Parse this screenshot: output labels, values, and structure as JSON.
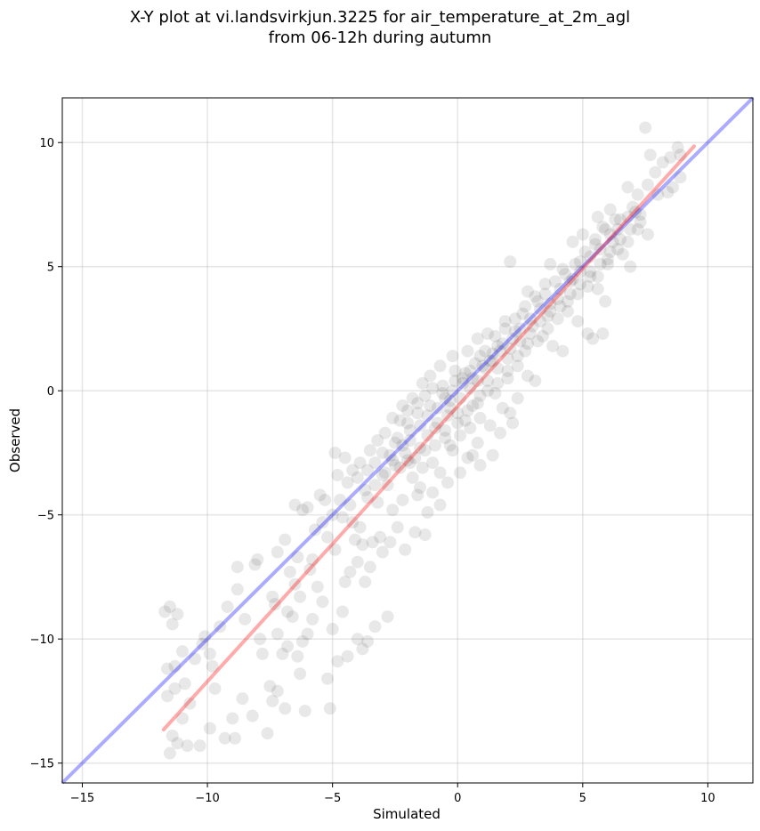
{
  "chart_data": {
    "type": "scatter",
    "title_line1": "X-Y plot at vi.landsvirkjun.3225 for air_temperature_at_2m_agl",
    "title_line2": "from 06-12h during autumn",
    "xlabel": "Simulated",
    "ylabel": "Observed",
    "xlim": [
      -15.8,
      11.8
    ],
    "ylim": [
      -15.8,
      11.8
    ],
    "xticks": [
      -15,
      -10,
      -5,
      0,
      5,
      10
    ],
    "yticks": [
      -15,
      -10,
      -5,
      0,
      5,
      10
    ],
    "xtick_labels": [
      "−15",
      "−10",
      "−5",
      "0",
      "5",
      "10"
    ],
    "ytick_labels": [
      "−15",
      "−10",
      "−5",
      "0",
      "5",
      "10"
    ],
    "grid": true,
    "point_color": "#000000",
    "point_opacity": 0.09,
    "reference_line": {
      "x": [
        -15.8,
        11.8
      ],
      "y": [
        -15.8,
        11.8
      ],
      "color": "#0000ff",
      "opacity": 0.33
    },
    "regression_line": {
      "x": [
        -11.75,
        9.45
      ],
      "y": [
        -13.65,
        9.85
      ],
      "color": "#ff0000",
      "opacity": 0.33
    },
    "points": [
      [
        -11.7,
        -8.9
      ],
      [
        -11.5,
        -8.7
      ],
      [
        -11.2,
        -9.0
      ],
      [
        -11.4,
        -9.4
      ],
      [
        -11.0,
        -10.5
      ],
      [
        -11.3,
        -11.1
      ],
      [
        -11.6,
        -11.2
      ],
      [
        -10.9,
        -11.8
      ],
      [
        -11.3,
        -12.0
      ],
      [
        -11.6,
        -12.3
      ],
      [
        -11.0,
        -13.2
      ],
      [
        -11.4,
        -13.9
      ],
      [
        -11.2,
        -14.2
      ],
      [
        -10.8,
        -14.3
      ],
      [
        -11.5,
        -14.6
      ],
      [
        -10.3,
        -14.3
      ],
      [
        -10.5,
        -10.8
      ],
      [
        -9.9,
        -10.6
      ],
      [
        -10.1,
        -9.9
      ],
      [
        -9.8,
        -11.1
      ],
      [
        -9.9,
        -13.6
      ],
      [
        -9.3,
        -14.0
      ],
      [
        -9.0,
        -13.2
      ],
      [
        -8.9,
        -14.0
      ],
      [
        -8.8,
        -8.0
      ],
      [
        -8.8,
        -7.1
      ],
      [
        -9.2,
        -8.7
      ],
      [
        -8.0,
        -6.8
      ],
      [
        -7.8,
        -10.6
      ],
      [
        -7.6,
        -13.8
      ],
      [
        -7.5,
        -11.9
      ],
      [
        -7.2,
        -12.1
      ],
      [
        -7.4,
        -12.5
      ],
      [
        -6.9,
        -12.8
      ],
      [
        -7.0,
        -10.6
      ],
      [
        -7.2,
        -9.8
      ],
      [
        -7.4,
        -8.3
      ],
      [
        -6.8,
        -8.9
      ],
      [
        -6.6,
        -9.1
      ],
      [
        -6.4,
        -10.7
      ],
      [
        -6.2,
        -10.1
      ],
      [
        -6.1,
        -12.9
      ],
      [
        -6.0,
        -9.8
      ],
      [
        -5.8,
        -9.2
      ],
      [
        -6.5,
        -7.8
      ],
      [
        -6.3,
        -8.3
      ],
      [
        -5.9,
        -7.2
      ],
      [
        -6.2,
        -4.8
      ],
      [
        -6.0,
        -4.7
      ],
      [
        -6.9,
        -6.0
      ],
      [
        -7.2,
        -6.5
      ],
      [
        -6.4,
        -6.7
      ],
      [
        -5.8,
        -6.8
      ],
      [
        -5.6,
        -7.9
      ],
      [
        -5.4,
        -8.5
      ],
      [
        -5.2,
        -11.6
      ],
      [
        -5.1,
        -12.8
      ],
      [
        -5.0,
        -9.6
      ],
      [
        -4.8,
        -10.9
      ],
      [
        -4.6,
        -8.9
      ],
      [
        -4.4,
        -10.7
      ],
      [
        -4.0,
        -10.0
      ],
      [
        -3.8,
        -10.4
      ],
      [
        -3.6,
        -10.1
      ],
      [
        -3.3,
        -9.5
      ],
      [
        -2.8,
        -9.1
      ],
      [
        -4.5,
        -7.7
      ],
      [
        -4.3,
        -7.3
      ],
      [
        -4.0,
        -6.9
      ],
      [
        -3.7,
        -7.7
      ],
      [
        -3.5,
        -7.1
      ],
      [
        -4.9,
        -6.4
      ],
      [
        -5.2,
        -5.9
      ],
      [
        -5.5,
        -4.2
      ],
      [
        -5.3,
        -4.4
      ],
      [
        -4.9,
        -2.5
      ],
      [
        -4.5,
        -2.7
      ],
      [
        -4.8,
        -3.4
      ],
      [
        -3.6,
        -4.3
      ],
      [
        -3.2,
        -4.5
      ],
      [
        -3.4,
        -6.1
      ],
      [
        -3.0,
        -6.5
      ],
      [
        -2.7,
        -6.1
      ],
      [
        -2.4,
        -5.5
      ],
      [
        -2.1,
        -6.4
      ],
      [
        -1.7,
        -5.7
      ],
      [
        -1.3,
        -5.8
      ],
      [
        -1.2,
        -4.9
      ],
      [
        -2.2,
        -4.4
      ],
      [
        -2.6,
        -4.8
      ],
      [
        -4.2,
        -5.3
      ],
      [
        -4.6,
        -5.1
      ],
      [
        -4.1,
        -6.0
      ],
      [
        -3.8,
        -6.2
      ],
      [
        -3.9,
        -5.5
      ],
      [
        -3.1,
        -5.9
      ],
      [
        -3.6,
        -3.2
      ],
      [
        -3.3,
        -2.9
      ],
      [
        -3.0,
        -3.4
      ],
      [
        -2.8,
        -3.8
      ],
      [
        -2.5,
        -3.0
      ],
      [
        -2.2,
        -2.2
      ],
      [
        -2.0,
        -2.8
      ],
      [
        -1.8,
        -3.5
      ],
      [
        -1.5,
        -3.9
      ],
      [
        -1.6,
        -4.2
      ],
      [
        -1.0,
        -4.1
      ],
      [
        -0.7,
        -4.6
      ],
      [
        -0.4,
        -3.7
      ],
      [
        0.1,
        -3.3
      ],
      [
        0.6,
        -2.6
      ],
      [
        0.9,
        -3.0
      ],
      [
        1.4,
        -2.6
      ],
      [
        0.8,
        -2.1
      ],
      [
        0.4,
        -2.7
      ],
      [
        -0.2,
        -2.4
      ],
      [
        -0.5,
        -1.9
      ],
      [
        -0.9,
        -1.5
      ],
      [
        -1.2,
        -1.8
      ],
      [
        -1.5,
        -2.3
      ],
      [
        -1.9,
        -1.6
      ],
      [
        -2.3,
        -1.2
      ],
      [
        -2.0,
        -0.8
      ],
      [
        -1.6,
        -0.5
      ],
      [
        -1.3,
        -0.2
      ],
      [
        -1.0,
        0.1
      ],
      [
        -0.6,
        0.2
      ],
      [
        -0.3,
        -0.4
      ],
      [
        0.0,
        -0.9
      ],
      [
        0.3,
        -1.2
      ],
      [
        0.6,
        -0.6
      ],
      [
        0.9,
        -0.2
      ],
      [
        1.2,
        0.4
      ],
      [
        1.5,
        -0.1
      ],
      [
        1.8,
        -0.7
      ],
      [
        2.1,
        -0.9
      ],
      [
        2.4,
        -0.3
      ],
      [
        2.0,
        0.5
      ],
      [
        1.6,
        0.9
      ],
      [
        1.3,
        1.2
      ],
      [
        0.9,
        1.4
      ],
      [
        0.5,
        0.8
      ],
      [
        0.2,
        0.5
      ],
      [
        -0.1,
        0.8
      ],
      [
        0.4,
        1.6
      ],
      [
        0.8,
        2.1
      ],
      [
        1.2,
        2.3
      ],
      [
        1.6,
        1.8
      ],
      [
        2.0,
        1.3
      ],
      [
        2.4,
        1.0
      ],
      [
        2.8,
        0.6
      ],
      [
        3.1,
        0.4
      ],
      [
        2.7,
        1.6
      ],
      [
        2.3,
        2.4
      ],
      [
        1.9,
        2.8
      ],
      [
        2.6,
        3.1
      ],
      [
        3.0,
        2.6
      ],
      [
        3.4,
        2.2
      ],
      [
        3.8,
        1.8
      ],
      [
        4.2,
        1.6
      ],
      [
        3.6,
        3.0
      ],
      [
        3.2,
        3.6
      ],
      [
        2.8,
        4.0
      ],
      [
        3.5,
        4.3
      ],
      [
        4.0,
        3.7
      ],
      [
        4.4,
        3.2
      ],
      [
        4.8,
        2.8
      ],
      [
        5.2,
        2.3
      ],
      [
        5.4,
        2.1
      ],
      [
        4.6,
        4.5
      ],
      [
        4.2,
        4.9
      ],
      [
        3.7,
        5.1
      ],
      [
        4.9,
        5.2
      ],
      [
        5.3,
        4.6
      ],
      [
        5.6,
        4.1
      ],
      [
        5.9,
        3.6
      ],
      [
        6.0,
        5.3
      ],
      [
        5.5,
        5.9
      ],
      [
        5.0,
        6.3
      ],
      [
        4.6,
        6.0
      ],
      [
        5.8,
        6.6
      ],
      [
        6.2,
        6.0
      ],
      [
        6.6,
        5.5
      ],
      [
        6.9,
        5.0
      ],
      [
        6.5,
        6.9
      ],
      [
        6.1,
        7.3
      ],
      [
        5.6,
        7.0
      ],
      [
        7.0,
        7.4
      ],
      [
        7.3,
        6.8
      ],
      [
        7.6,
        6.3
      ],
      [
        7.2,
        7.9
      ],
      [
        6.8,
        8.2
      ],
      [
        7.6,
        8.3
      ],
      [
        8.0,
        7.9
      ],
      [
        8.4,
        8.0
      ],
      [
        7.9,
        8.8
      ],
      [
        8.2,
        9.2
      ],
      [
        7.7,
        9.5
      ],
      [
        8.5,
        9.4
      ],
      [
        8.9,
        9.5
      ],
      [
        8.8,
        9.8
      ],
      [
        7.5,
        10.6
      ],
      [
        8.9,
        8.6
      ],
      [
        8.6,
        8.2
      ],
      [
        2.1,
        5.2
      ],
      [
        5.8,
        2.3
      ],
      [
        -0.2,
        1.4
      ],
      [
        -0.7,
        1.0
      ],
      [
        -1.1,
        0.6
      ],
      [
        -1.4,
        0.3
      ],
      [
        -1.8,
        -0.3
      ],
      [
        -2.2,
        -0.6
      ],
      [
        -2.6,
        -1.1
      ],
      [
        -2.9,
        -1.7
      ],
      [
        -3.2,
        -2.0
      ],
      [
        -3.5,
        -2.4
      ],
      [
        -3.9,
        -2.9
      ],
      [
        -4.2,
        -3.2
      ],
      [
        -4.4,
        -3.7
      ],
      [
        -2.4,
        -1.9
      ],
      [
        -2.1,
        -2.5
      ],
      [
        -1.7,
        -2.7
      ],
      [
        -1.4,
        -3.1
      ],
      [
        -1.0,
        -2.9
      ],
      [
        -0.7,
        -3.3
      ],
      [
        -0.3,
        -2.2
      ],
      [
        0.1,
        -1.8
      ],
      [
        0.5,
        -1.5
      ],
      [
        0.9,
        -1.1
      ],
      [
        1.3,
        -1.4
      ],
      [
        1.7,
        -1.7
      ],
      [
        2.2,
        -1.3
      ],
      [
        -0.4,
        -1.0
      ],
      [
        0.1,
        -0.3
      ],
      [
        0.5,
        0.1
      ],
      [
        0.8,
        0.4
      ],
      [
        1.1,
        0.9
      ],
      [
        1.4,
        1.5
      ],
      [
        1.8,
        1.9
      ],
      [
        2.2,
        2.1
      ],
      [
        2.5,
        2.5
      ],
      [
        2.9,
        2.9
      ],
      [
        3.3,
        3.3
      ],
      [
        3.7,
        3.5
      ],
      [
        4.1,
        4.1
      ],
      [
        4.5,
        4.4
      ],
      [
        4.9,
        4.8
      ],
      [
        5.3,
        5.4
      ],
      [
        5.7,
        5.7
      ],
      [
        6.1,
        6.3
      ],
      [
        6.4,
        6.5
      ],
      [
        6.8,
        7.0
      ],
      [
        7.1,
        7.2
      ],
      [
        -1.9,
        -2.0
      ],
      [
        -1.5,
        -1.4
      ],
      [
        -1.2,
        -1.0
      ],
      [
        -0.8,
        -0.7
      ],
      [
        -0.5,
        -0.3
      ],
      [
        -0.2,
        0.0
      ],
      [
        0.2,
        0.3
      ],
      [
        0.6,
        0.5
      ],
      [
        1.0,
        1.0
      ],
      [
        1.4,
        1.2
      ],
      [
        1.7,
        1.6
      ],
      [
        2.1,
        1.7
      ],
      [
        2.5,
        2.0
      ],
      [
        2.9,
        2.3
      ],
      [
        3.3,
        2.8
      ],
      [
        3.7,
        3.2
      ],
      [
        4.1,
        3.4
      ],
      [
        4.5,
        3.9
      ],
      [
        4.9,
        4.3
      ],
      [
        5.3,
        4.8
      ],
      [
        5.7,
        5.1
      ],
      [
        6.1,
        5.6
      ],
      [
        6.5,
        6.1
      ],
      [
        6.9,
        6.5
      ],
      [
        7.3,
        7.1
      ],
      [
        -2.7,
        -2.6
      ],
      [
        -3.0,
        -2.5
      ],
      [
        -2.5,
        -2.1
      ],
      [
        -2.0,
        -1.3
      ],
      [
        -1.6,
        -0.9
      ],
      [
        -1.1,
        -0.6
      ],
      [
        -0.6,
        -0.1
      ],
      [
        -0.1,
        0.4
      ],
      [
        0.3,
        0.7
      ],
      [
        0.7,
        1.1
      ],
      [
        1.1,
        1.6
      ],
      [
        1.5,
        2.2
      ],
      [
        1.9,
        2.5
      ],
      [
        2.3,
        2.9
      ],
      [
        2.7,
        3.4
      ],
      [
        3.1,
        3.8
      ],
      [
        3.5,
        3.9
      ],
      [
        3.9,
        4.4
      ],
      [
        4.3,
        4.7
      ],
      [
        4.7,
        5.1
      ],
      [
        5.1,
        5.6
      ],
      [
        5.5,
        6.1
      ],
      [
        5.9,
        6.5
      ],
      [
        6.3,
        6.9
      ],
      [
        -0.9,
        -2.2
      ],
      [
        -0.5,
        -1.6
      ],
      [
        0.0,
        -1.3
      ],
      [
        0.4,
        -0.8
      ],
      [
        0.8,
        -0.5
      ],
      [
        1.2,
        0.0
      ],
      [
        1.6,
        0.3
      ],
      [
        2.0,
        0.8
      ],
      [
        2.4,
        1.4
      ],
      [
        2.8,
        1.9
      ],
      [
        3.2,
        2.0
      ],
      [
        3.6,
        2.5
      ],
      [
        4.0,
        2.9
      ],
      [
        4.4,
        3.6
      ],
      [
        4.8,
        3.9
      ],
      [
        5.2,
        4.2
      ],
      [
        5.6,
        4.6
      ],
      [
        6.0,
        5.1
      ],
      [
        6.4,
        5.7
      ],
      [
        6.8,
        6.0
      ],
      [
        7.2,
        6.5
      ],
      [
        -2.3,
        -3.1
      ],
      [
        -1.9,
        -2.9
      ],
      [
        -1.3,
        -2.4
      ],
      [
        -0.8,
        -1.3
      ],
      [
        -0.3,
        -0.7
      ],
      [
        -3.7,
        -4.0
      ],
      [
        -3.3,
        -3.8
      ],
      [
        -2.9,
        -3.3
      ],
      [
        -2.6,
        -2.8
      ],
      [
        -4.0,
        -3.5
      ],
      [
        -4.7,
        -4.4
      ],
      [
        -4.3,
        -4.6
      ],
      [
        -5.0,
        -5.0
      ],
      [
        -5.4,
        -5.3
      ],
      [
        -5.7,
        -5.6
      ],
      [
        -6.5,
        -4.6
      ],
      [
        -6.7,
        -7.3
      ],
      [
        -7.3,
        -8.6
      ],
      [
        -8.1,
        -7.0
      ],
      [
        -7.9,
        -10.0
      ],
      [
        -6.8,
        -10.3
      ],
      [
        -8.5,
        -9.2
      ],
      [
        -9.5,
        -9.5
      ],
      [
        -10.2,
        -10.2
      ],
      [
        -10.7,
        -12.6
      ],
      [
        -9.7,
        -12.0
      ],
      [
        -8.6,
        -12.4
      ],
      [
        -8.2,
        -13.1
      ],
      [
        -6.3,
        -11.4
      ]
    ]
  }
}
